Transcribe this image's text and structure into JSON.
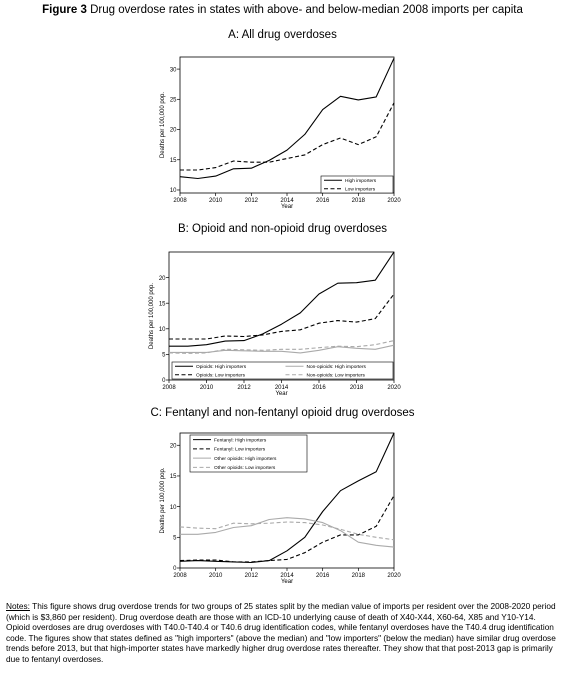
{
  "figure": {
    "label": "Figure 3",
    "title": "Drug overdose rates in states with above- and below-median 2008 imports per capita"
  },
  "notes": {
    "label": "Notes:",
    "text": "This figure shows drug overdose trends for two groups of 25 states split by the median value of imports per resident over the 2008-2020 period (which is $3,860 per resident). Drug overdose death are those with an ICD-10 underlying cause of death of X40-X44, X60-64, X85 and Y10-Y14. Opioid overdoses are drug overdoses with T40.0-T40.4 or T40.6 drug identification codes, while fentanyl overdoses have the T40.4 drug identification code. The figures show that states defined as \"high importers\" (above the median) and \"low importers\" (below the median) have similar drug overdose trends before 2013, but that high-importer states have markedly higher drug overdose rates thereafter. They show that that post-2013 gap is primarily due to fentanyl overdoses."
  },
  "chart_data": [
    {
      "type": "line",
      "title": "A: All drug overdoses",
      "xlabel": "Year",
      "ylabel": "Deaths per 100,000 pop.",
      "xlim": [
        2008,
        2020
      ],
      "ylim": [
        9.5,
        32
      ],
      "xticks": [
        2008,
        2010,
        2012,
        2014,
        2016,
        2018,
        2020
      ],
      "yticks": [
        10,
        15,
        20,
        25,
        30
      ],
      "legend_position": "bottom-right",
      "legend_columns": 1,
      "x": [
        2008,
        2009,
        2010,
        2011,
        2012,
        2013,
        2014,
        2015,
        2016,
        2017,
        2018,
        2019,
        2020
      ],
      "series": [
        {
          "name": "High importers",
          "color": "#000000",
          "dash": "solid",
          "values": [
            12.2,
            11.9,
            12.3,
            13.5,
            13.6,
            14.9,
            16.6,
            19.2,
            23.3,
            25.5,
            24.9,
            25.4,
            31.8
          ]
        },
        {
          "name": "Low importers",
          "color": "#000000",
          "dash": "dashed",
          "values": [
            13.3,
            13.3,
            13.7,
            14.8,
            14.6,
            14.6,
            15.2,
            15.8,
            17.5,
            18.6,
            17.5,
            18.8,
            24.4
          ]
        }
      ]
    },
    {
      "type": "line",
      "title": "B: Opioid and non-opioid drug overdoses",
      "xlabel": "Year",
      "ylabel": "Deaths per 100,000 pop.",
      "xlim": [
        2008,
        2020
      ],
      "ylim": [
        0,
        25
      ],
      "xticks": [
        2008,
        2010,
        2012,
        2014,
        2016,
        2018,
        2020
      ],
      "yticks": [
        0,
        5,
        10,
        15,
        20
      ],
      "legend_position": "bottom",
      "legend_columns": 2,
      "x": [
        2008,
        2009,
        2010,
        2011,
        2012,
        2013,
        2014,
        2015,
        2016,
        2017,
        2018,
        2019,
        2020
      ],
      "series": [
        {
          "name": "Opioids: High importers",
          "color": "#000000",
          "dash": "solid",
          "values": [
            6.6,
            6.6,
            6.9,
            7.6,
            7.7,
            9.0,
            10.9,
            13.1,
            16.8,
            18.9,
            19.0,
            19.5,
            25.0
          ]
        },
        {
          "name": "Opioids: Low importers",
          "color": "#000000",
          "dash": "dashed",
          "values": [
            8.0,
            8.0,
            8.0,
            8.6,
            8.5,
            8.8,
            9.5,
            9.8,
            11.1,
            11.6,
            11.3,
            12.0,
            16.8
          ]
        },
        {
          "name": "Non-opioids: High importers",
          "color": "#aaaaaa",
          "dash": "solid",
          "values": [
            5.4,
            5.4,
            5.4,
            5.8,
            5.7,
            5.6,
            5.6,
            5.3,
            5.8,
            6.5,
            6.2,
            6.0,
            6.8
          ]
        },
        {
          "name": "Non-opioids: Low importers",
          "color": "#aaaaaa",
          "dash": "dashed",
          "values": [
            5.3,
            5.2,
            5.3,
            6.0,
            5.9,
            5.8,
            6.0,
            6.0,
            6.3,
            6.6,
            6.5,
            6.9,
            7.7
          ]
        }
      ]
    },
    {
      "type": "line",
      "title": "C: Fentanyl and non-fentanyl opioid drug overdoses",
      "xlabel": "Year",
      "ylabel": "Deaths per 100,000 pop.",
      "xlim": [
        2008,
        2020
      ],
      "ylim": [
        0,
        22
      ],
      "xticks": [
        2008,
        2010,
        2012,
        2014,
        2016,
        2018,
        2020
      ],
      "yticks": [
        0,
        5,
        10,
        15,
        20
      ],
      "legend_position": "top-left",
      "legend_columns": 1,
      "x": [
        2008,
        2009,
        2010,
        2011,
        2012,
        2013,
        2014,
        2015,
        2016,
        2017,
        2018,
        2019,
        2020
      ],
      "series": [
        {
          "name": "Fentanyl: High importers",
          "color": "#000000",
          "dash": "solid",
          "values": [
            1.1,
            1.2,
            1.1,
            1.0,
            0.9,
            1.2,
            2.8,
            5.0,
            9.2,
            12.6,
            14.2,
            15.7,
            22.0
          ]
        },
        {
          "name": "Fentanyl: Low importers",
          "color": "#000000",
          "dash": "dashed",
          "values": [
            1.2,
            1.3,
            1.3,
            1.0,
            1.0,
            1.2,
            1.4,
            2.5,
            4.2,
            5.4,
            5.4,
            6.8,
            11.8
          ]
        },
        {
          "name": "Other opioids: High importers",
          "color": "#aaaaaa",
          "dash": "solid",
          "values": [
            5.5,
            5.5,
            5.8,
            6.6,
            6.9,
            7.9,
            8.2,
            8.0,
            7.4,
            6.1,
            4.2,
            3.7,
            3.4
          ]
        },
        {
          "name": "Other opioids: Low importers",
          "color": "#aaaaaa",
          "dash": "dashed",
          "values": [
            6.7,
            6.5,
            6.4,
            7.3,
            7.2,
            7.3,
            7.5,
            7.4,
            7.0,
            6.3,
            5.5,
            5.0,
            4.6
          ]
        }
      ]
    }
  ]
}
